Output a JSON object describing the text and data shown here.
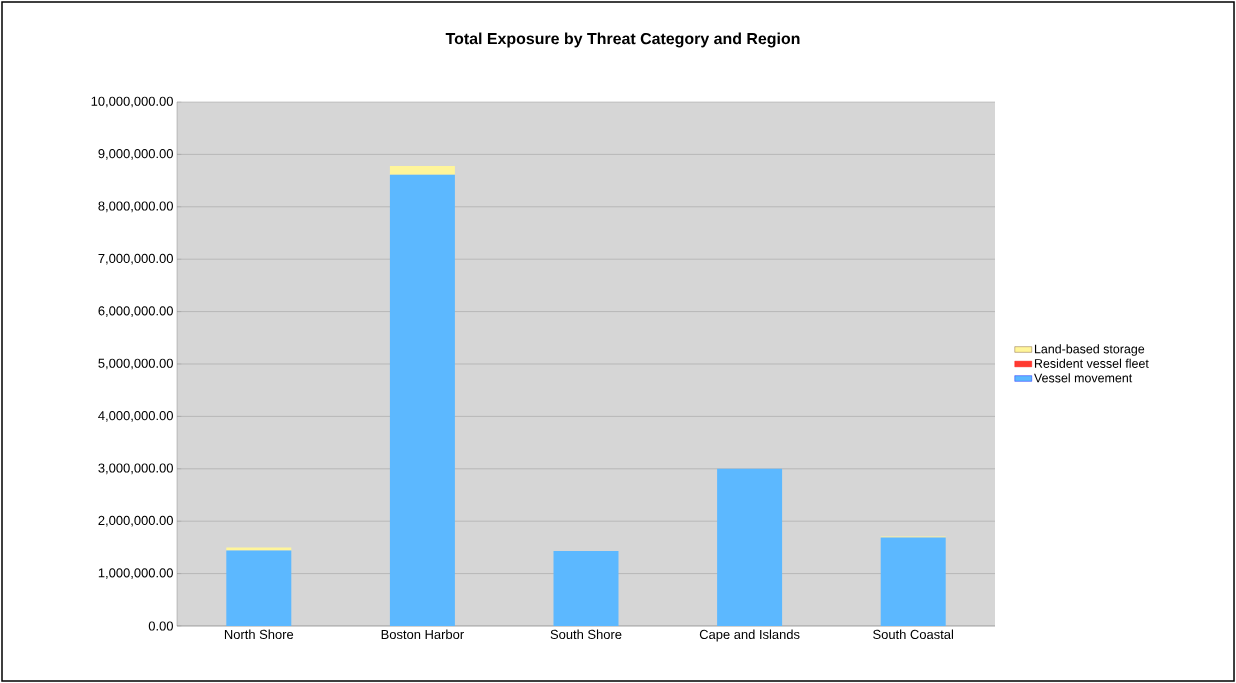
{
  "chart_data": {
    "type": "bar",
    "title": "Total Exposure by Threat Category and Region",
    "categories": [
      "North Shore",
      "Boston Harbor",
      "South Shore",
      "Cape and Islands",
      "South Coastal"
    ],
    "stacked": true,
    "series": [
      {
        "name": "Vessel movement",
        "color": "#5cb8ff",
        "values": [
          1440000,
          8610000,
          1430000,
          3000000,
          1690000
        ]
      },
      {
        "name": "Resident vessel fleet",
        "color": "#ff3a30",
        "values": [
          0,
          0,
          0,
          0,
          0
        ]
      },
      {
        "name": "Land-based storage",
        "color": "#fff59a",
        "values": [
          60000,
          170000,
          0,
          0,
          20000
        ]
      }
    ],
    "ylim": [
      0,
      10000000
    ],
    "yticks": [
      {
        "value": 0,
        "label": "0.00"
      },
      {
        "value": 1000000,
        "label": "1,000,000.00"
      },
      {
        "value": 2000000,
        "label": "2,000,000.00"
      },
      {
        "value": 3000000,
        "label": "3,000,000.00"
      },
      {
        "value": 4000000,
        "label": "4,000,000.00"
      },
      {
        "value": 5000000,
        "label": "5,000,000.00"
      },
      {
        "value": 6000000,
        "label": "6,000,000.00"
      },
      {
        "value": 7000000,
        "label": "7,000,000.00"
      },
      {
        "value": 8000000,
        "label": "8,000,000.00"
      },
      {
        "value": 9000000,
        "label": "9,000,000.00"
      },
      {
        "value": 10000000,
        "label": "10,000,000.00"
      }
    ],
    "grid": "y",
    "legend": "right"
  }
}
